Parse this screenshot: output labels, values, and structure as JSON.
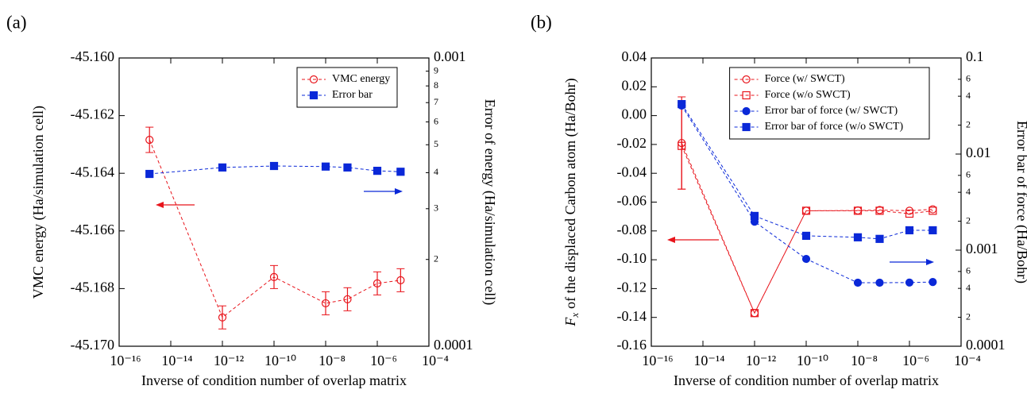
{
  "chart_data": [
    {
      "type": "line",
      "panel_label": "(a)",
      "xlabel": "Inverse of condition number of overlap matrix",
      "ylabel": "VMC energy (Ha/simulation cell)",
      "y2label": "Error of energy (Ha/simulation cell)",
      "x_scale": "log",
      "y2_scale": "log",
      "legend": "upper right",
      "xlim": [
        1e-16,
        0.0001
      ],
      "xticks": [
        {
          "value": 1e-16,
          "label": "10⁻¹⁶"
        },
        {
          "value": 1e-14,
          "label": "10⁻¹⁴"
        },
        {
          "value": 1e-12,
          "label": "10⁻¹²"
        },
        {
          "value": 1e-10,
          "label": "10⁻¹⁰"
        },
        {
          "value": 1e-08,
          "label": "10⁻⁸"
        },
        {
          "value": 1e-06,
          "label": "10⁻⁶"
        },
        {
          "value": 0.0001,
          "label": "10⁻⁴"
        }
      ],
      "ylim": [
        -45.17,
        -45.16
      ],
      "yticks": [
        {
          "value": -45.17,
          "label": "-45.170"
        },
        -45.168,
        -45.166,
        -45.164,
        -45.162,
        {
          "value": -45.16,
          "label": "-45.160"
        }
      ],
      "y2lim": [
        0.0001,
        0.001
      ],
      "y2ticks": [
        0.0001,
        {
          "value": 0.0002,
          "label": "2"
        },
        {
          "value": 0.0003,
          "label": "3"
        },
        {
          "value": 0.0004,
          "label": "4"
        },
        {
          "value": 0.0005,
          "label": "5"
        },
        {
          "value": 0.0006,
          "label": "6"
        },
        {
          "value": 0.0007,
          "label": "7"
        },
        {
          "value": 0.0008,
          "label": "8"
        },
        {
          "value": 0.0009,
          "label": "9"
        },
        0.001
      ],
      "x": [
        1.5e-15,
        1e-12,
        1e-10,
        1e-08,
        7e-08,
        1e-06,
        8e-06
      ],
      "series": [
        {
          "name": "VMC energy",
          "color": "#e8141b",
          "marker": "circle",
          "filled": false,
          "values": [
            -45.16284,
            -45.169,
            -45.1676,
            -45.16851,
            -45.16837,
            -45.16782,
            -45.16771
          ],
          "errors": [
            0.00044,
            0.0004,
            0.0004,
            0.0004,
            0.0004,
            0.0004,
            0.0004
          ]
        },
        {
          "name": "Error bar",
          "color": "#0a28d8",
          "marker": "square",
          "filled": true,
          "axis": "y2",
          "values": [
            0.000396,
            0.000417,
            0.000422,
            0.00042,
            0.000417,
            0.000406,
            0.000403
          ]
        }
      ]
    },
    {
      "type": "line",
      "panel_label": "(b)",
      "xlabel": "Inverse of condition number of overlap matrix",
      "ylabel": {
        "symbol": "F",
        "subscript": "x",
        "text": "of the displaced Carbon atom (Ha/Bohr)"
      },
      "y2label": "Error bar of force (Ha/Bohr)",
      "x_scale": "log",
      "y2_scale": "log",
      "legend": "upper right",
      "xlim": [
        1e-16,
        0.0001
      ],
      "xticks": [
        {
          "value": 1e-16,
          "label": "10⁻¹⁶"
        },
        {
          "value": 1e-14,
          "label": "10⁻¹⁴"
        },
        {
          "value": 1e-12,
          "label": "10⁻¹²"
        },
        {
          "value": 1e-10,
          "label": "10⁻¹⁰"
        },
        {
          "value": 1e-08,
          "label": "10⁻⁸"
        },
        {
          "value": 1e-06,
          "label": "10⁻⁶"
        },
        {
          "value": 0.0001,
          "label": "10⁻⁴"
        }
      ],
      "ylim": [
        -0.16,
        0.04
      ],
      "yticks": [
        -0.16,
        -0.14,
        -0.12,
        {
          "value": -0.1,
          "label": "-0.10"
        },
        -0.08,
        -0.06,
        -0.04,
        -0.02,
        {
          "value": 0,
          "label": "0.00"
        },
        0.02,
        0.04
      ],
      "y2lim": [
        0.0001,
        0.1
      ],
      "y2ticks": [
        0.0001,
        {
          "value": 0.0002,
          "label": "2"
        },
        {
          "value": 0.0004,
          "label": "4"
        },
        {
          "value": 0.0006,
          "label": "6"
        },
        0.001,
        {
          "value": 0.002,
          "label": "2"
        },
        {
          "value": 0.004,
          "label": "4"
        },
        {
          "value": 0.006,
          "label": "6"
        },
        0.01,
        {
          "value": 0.02,
          "label": "2"
        },
        {
          "value": 0.04,
          "label": "4"
        },
        {
          "value": 0.06,
          "label": "6"
        },
        0.1
      ],
      "x": [
        1.5e-15,
        1e-12,
        1e-10,
        1e-08,
        7e-08,
        1e-06,
        8e-06
      ],
      "series": [
        {
          "name": "Force (w/ SWCT)",
          "color": "#e8141b",
          "marker": "circle",
          "filled": false,
          "values": [
            -0.019,
            -0.137,
            -0.066,
            -0.0658,
            -0.0655,
            -0.066,
            -0.065
          ],
          "errors": [
            0.032,
            null,
            null,
            null,
            null,
            null,
            null
          ]
        },
        {
          "name": "Force (w/o SWCT)",
          "color": "#e8141b",
          "marker": "square",
          "filled": false,
          "values": [
            -0.021,
            -0.137,
            -0.066,
            -0.066,
            -0.066,
            -0.068,
            -0.066
          ],
          "errors": [
            0.03,
            null,
            null,
            null,
            null,
            null,
            null
          ]
        },
        {
          "name": "Error bar of force (w/ SWCT)",
          "color": "#0a28d8",
          "marker": "circle",
          "filled": true,
          "axis": "y2",
          "values": [
            0.0319,
            0.00198,
            0.00081,
            0.000458,
            0.000458,
            0.00046,
            0.000466
          ]
        },
        {
          "name": "Error bar of force (w/o SWCT)",
          "color": "#0a28d8",
          "marker": "square",
          "filled": true,
          "axis": "y2",
          "values": [
            0.0331,
            0.00227,
            0.00141,
            0.00136,
            0.00131,
            0.00161,
            0.00161
          ]
        }
      ]
    }
  ]
}
